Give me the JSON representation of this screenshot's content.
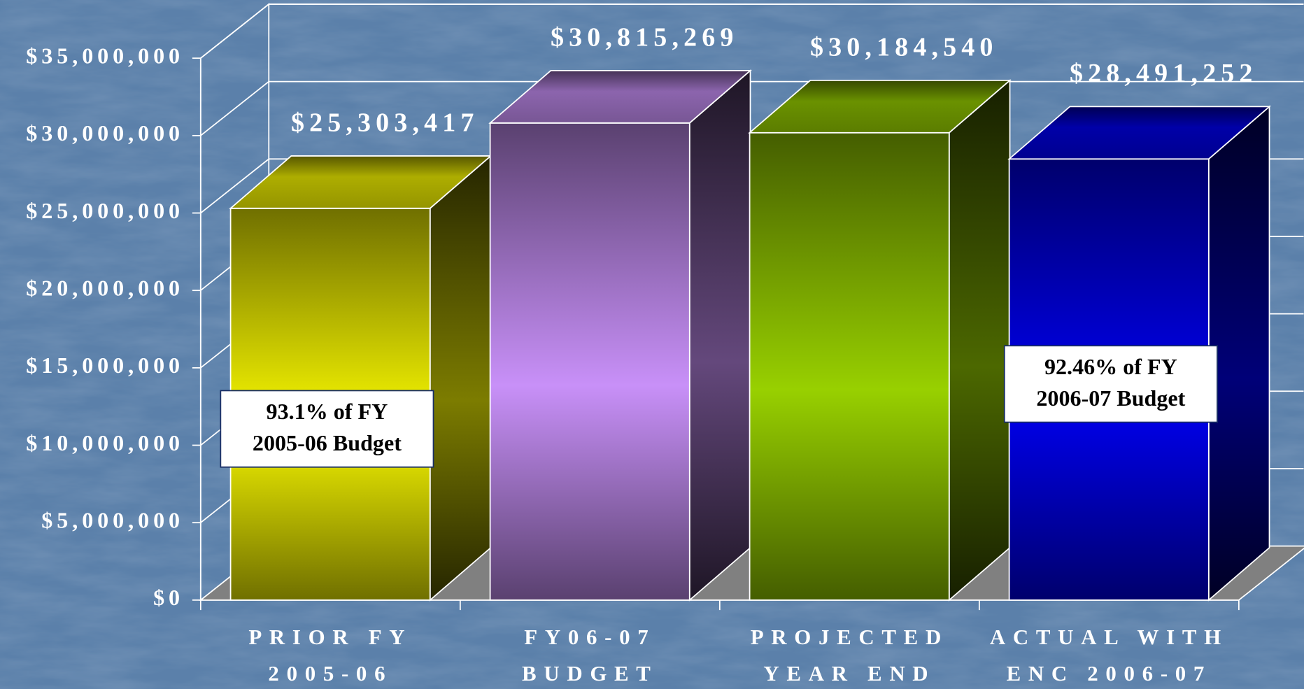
{
  "chart_data": {
    "type": "bar3d",
    "categories": [
      [
        "PRIOR FY",
        "2005-06"
      ],
      [
        "FY06-07",
        "BUDGET"
      ],
      [
        "PROJECTED",
        "YEAR END"
      ],
      [
        "ACTUAL WITH",
        "ENC 2006-07"
      ]
    ],
    "values": [
      25303417,
      30815269,
      30184540,
      28491252
    ],
    "value_labels": [
      "$25,303,417",
      "$30,815,269",
      "$30,184,540",
      "$28,491,252"
    ],
    "colors": [
      "#f8f800",
      "#c890f8",
      "#98d000",
      "#0000f0"
    ],
    "ylim": [
      0,
      35000000
    ],
    "yticks": [
      {
        "value": 0,
        "label": "$0"
      },
      {
        "value": 5000000,
        "label": "$5,000,000"
      },
      {
        "value": 10000000,
        "label": "$10,000,000"
      },
      {
        "value": 15000000,
        "label": "$15,000,000"
      },
      {
        "value": 20000000,
        "label": "$20,000,000"
      },
      {
        "value": 25000000,
        "label": "$25,000,000"
      },
      {
        "value": 30000000,
        "label": "$30,000,000"
      },
      {
        "value": 35000000,
        "label": "$35,000,000"
      }
    ],
    "grid": true,
    "annotations": [
      {
        "bar": 0,
        "lines": [
          "93.1% of FY",
          "2005-06 Budget"
        ]
      },
      {
        "bar": 3,
        "lines": [
          "92.46% of FY",
          "2006-07 Budget"
        ]
      }
    ]
  }
}
